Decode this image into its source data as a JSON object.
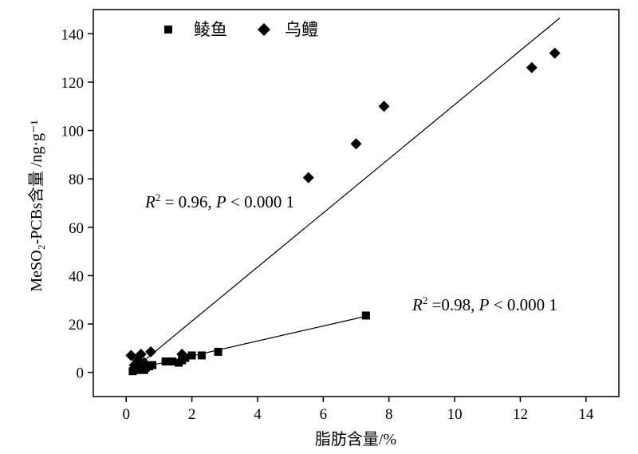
{
  "chart_data": {
    "type": "scatter",
    "xlabel": "脂肪含量/%",
    "ylabel": "MeSO₂-PCBs含量 /ng·g⁻¹",
    "xlim": [
      -1,
      15
    ],
    "ylim": [
      -10,
      150
    ],
    "xticks": [
      "0",
      "2",
      "4",
      "6",
      "8",
      "10",
      "12",
      "14"
    ],
    "yticks": [
      "0",
      "20",
      "40",
      "60",
      "80",
      "100",
      "120",
      "140"
    ],
    "legend_position": "top-left",
    "grid": false,
    "series": [
      {
        "name": "鲮鱼",
        "marker": "square",
        "points": [
          [
            0.2,
            0.5
          ],
          [
            0.25,
            1.5
          ],
          [
            0.3,
            2
          ],
          [
            0.35,
            1
          ],
          [
            0.4,
            2.5
          ],
          [
            0.45,
            1.5
          ],
          [
            0.5,
            3
          ],
          [
            0.55,
            1
          ],
          [
            0.6,
            2
          ],
          [
            0.7,
            2.5
          ],
          [
            0.8,
            3
          ],
          [
            1.2,
            4.5
          ],
          [
            1.4,
            4.5
          ],
          [
            1.6,
            4
          ],
          [
            1.7,
            5
          ],
          [
            1.8,
            6
          ],
          [
            2.0,
            7
          ],
          [
            2.3,
            7
          ],
          [
            2.8,
            8.5
          ],
          [
            7.3,
            23.5
          ]
        ],
        "fit": {
          "x": [
            0.15,
            7.3
          ],
          "y": [
            1.0,
            23.2
          ]
        }
      },
      {
        "name": "乌鳢",
        "marker": "diamond",
        "points": [
          [
            0.15,
            7
          ],
          [
            0.25,
            3
          ],
          [
            0.35,
            5
          ],
          [
            0.45,
            7.5
          ],
          [
            0.55,
            4
          ],
          [
            0.75,
            8.5
          ],
          [
            1.7,
            7.5
          ],
          [
            5.55,
            80.5
          ],
          [
            7.0,
            94.5
          ],
          [
            7.85,
            110
          ],
          [
            12.35,
            126
          ],
          [
            13.05,
            132
          ]
        ],
        "fit": {
          "x": [
            0.2,
            13.2
          ],
          "y": [
            1.0,
            146.5
          ]
        }
      }
    ],
    "annotations": [
      {
        "text": "R² = 0.96, P < 0.000 1",
        "x": 0.6,
        "y": 70
      },
      {
        "text": "R² =0.98, P < 0.000 1",
        "x": 8.8,
        "y": 26
      }
    ]
  }
}
